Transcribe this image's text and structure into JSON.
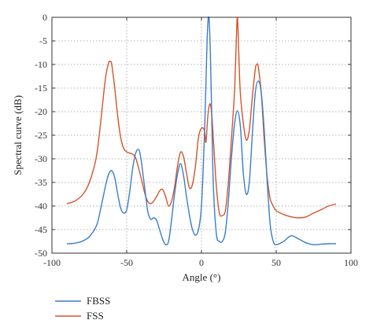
{
  "chart_data": {
    "type": "line",
    "title": "",
    "xlabel": "Angle (°)",
    "ylabel": "Spectral curve (dB)",
    "xlim": [
      -100,
      100
    ],
    "ylim": [
      -50,
      0
    ],
    "xticks": [
      -100,
      -50,
      0,
      50,
      100
    ],
    "yticks": [
      0,
      -5,
      -10,
      -15,
      -20,
      -25,
      -30,
      -35,
      -40,
      -45,
      -50
    ],
    "grid": true,
    "legend_position": "bottom-left, below axes",
    "series": [
      {
        "name": "FBSS",
        "color": "#3a7dc9",
        "x": [
          -90,
          -85,
          -80,
          -75,
          -70,
          -67,
          -64,
          -62,
          -60,
          -58,
          -56,
          -54,
          -52,
          -50,
          -48,
          -46,
          -44,
          -42,
          -41,
          -40,
          -38,
          -36,
          -34,
          -32,
          -30,
          -28,
          -26,
          -24,
          -22,
          -20,
          -18,
          -16,
          -14,
          -12,
          -10,
          -8,
          -6,
          -4,
          -2,
          0,
          2,
          3,
          4,
          5,
          6,
          7,
          8,
          10,
          12,
          14,
          16,
          18,
          20,
          22,
          24,
          26,
          28,
          30,
          32,
          34,
          36,
          38,
          40,
          42,
          44,
          46,
          48,
          50,
          55,
          60,
          65,
          70,
          75,
          80,
          85,
          90
        ],
        "y": [
          -48,
          -47.9,
          -47.5,
          -46.5,
          -44,
          -40,
          -35.5,
          -33.2,
          -32.5,
          -34,
          -37.5,
          -40.5,
          -41.5,
          -40.8,
          -37,
          -32,
          -28.8,
          -28,
          -29,
          -31,
          -36,
          -41,
          -42.8,
          -42.5,
          -43,
          -45,
          -47,
          -48.2,
          -47.5,
          -43,
          -37.5,
          -33.2,
          -31,
          -33.5,
          -38,
          -42,
          -45,
          -46.2,
          -45,
          -40,
          -25,
          -14,
          -3,
          0,
          -8,
          -23,
          -36,
          -46,
          -47.5,
          -47.5,
          -45.5,
          -39,
          -30,
          -23,
          -19.8,
          -23,
          -33,
          -37.5,
          -35,
          -25,
          -16,
          -13.5,
          -16,
          -24,
          -35,
          -44,
          -47.5,
          -48.2,
          -47.5,
          -46.3,
          -47,
          -47.8,
          -48.2,
          -48.1,
          -48,
          -48
        ]
      },
      {
        "name": "FSS",
        "color": "#d4552a",
        "x": [
          -90,
          -85,
          -80,
          -76,
          -72,
          -70,
          -68,
          -66,
          -64,
          -62,
          -61,
          -60,
          -58,
          -56,
          -54,
          -52,
          -50,
          -48,
          -46,
          -44,
          -42,
          -40,
          -38,
          -36,
          -34,
          -32,
          -30,
          -28,
          -26,
          -24,
          -22,
          -20,
          -18,
          -16,
          -14,
          -12,
          -10,
          -8,
          -6,
          -4,
          -2,
          0,
          2,
          3,
          4,
          5,
          6,
          7,
          8,
          10,
          12,
          14,
          16,
          18,
          20,
          22,
          23,
          24,
          25,
          26,
          28,
          30,
          32,
          34,
          36,
          37,
          38,
          40,
          42,
          44,
          46,
          48,
          50,
          55,
          60,
          65,
          70,
          75,
          80,
          85,
          90
        ],
        "y": [
          -39.5,
          -39,
          -37.8,
          -35.8,
          -32,
          -29,
          -24,
          -18,
          -12.5,
          -9.6,
          -9.4,
          -10,
          -15,
          -21,
          -25.5,
          -27.8,
          -28.5,
          -28.8,
          -29,
          -29.8,
          -32,
          -34.5,
          -37.2,
          -39,
          -39.5,
          -39,
          -38,
          -36.8,
          -36.5,
          -38,
          -40,
          -39,
          -36,
          -31.5,
          -28.6,
          -29.5,
          -33,
          -36.2,
          -35.4,
          -31.5,
          -25.5,
          -23.5,
          -24,
          -26.5,
          -22,
          -19,
          -18.5,
          -21,
          -26,
          -36,
          -41.5,
          -42,
          -41,
          -35,
          -26,
          -16.5,
          -8,
          0,
          -8,
          -16,
          -22.5,
          -26,
          -24,
          -17,
          -11,
          -10,
          -10.5,
          -16,
          -26,
          -34,
          -38.5,
          -40,
          -41,
          -41.8,
          -42.3,
          -42.5,
          -42.3,
          -41.5,
          -40.8,
          -40,
          -39.6
        ]
      }
    ]
  }
}
